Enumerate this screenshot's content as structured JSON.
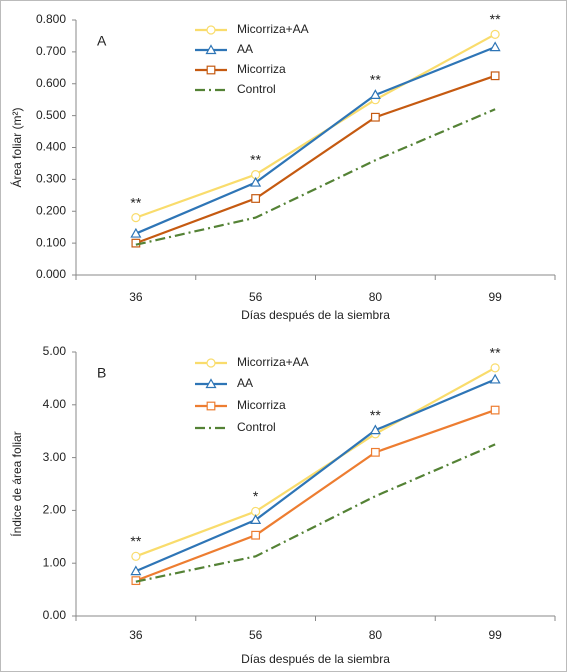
{
  "chart_data": [
    {
      "type": "line",
      "panel_label": "A",
      "ylabel": "Área foliar (m²)",
      "xlabel": "Días después de la siembra",
      "categories": [
        "36",
        "56",
        "80",
        "99"
      ],
      "series": [
        {
          "name": "Micorriza+AA",
          "color": "#f9dc6c",
          "marker": "circle",
          "dash": "solid",
          "values": [
            0.18,
            0.315,
            0.55,
            0.755
          ]
        },
        {
          "name": "AA",
          "color": "#2e75b6",
          "marker": "triangle",
          "dash": "solid",
          "values": [
            0.13,
            0.29,
            0.565,
            0.715
          ]
        },
        {
          "name": "Micorriza",
          "color": "#c55a11",
          "marker": "square",
          "dash": "solid",
          "values": [
            0.1,
            0.24,
            0.495,
            0.625
          ]
        },
        {
          "name": "Control",
          "color": "#548235",
          "marker": "none",
          "dash": "dashdot",
          "values": [
            0.095,
            0.18,
            0.36,
            0.52
          ]
        }
      ],
      "annotations": [
        "**",
        "**",
        "**",
        "**"
      ],
      "ylim": [
        0,
        0.8
      ],
      "yticks": [
        {
          "value": 0,
          "label": "0.000"
        },
        {
          "value": 0.1,
          "label": "0.100"
        },
        {
          "value": 0.2,
          "label": "0.200"
        },
        {
          "value": 0.3,
          "label": "0.300"
        },
        {
          "value": 0.4,
          "label": "0.400"
        },
        {
          "value": 0.5,
          "label": "0.500"
        },
        {
          "value": 0.6,
          "label": "0.600"
        },
        {
          "value": 0.7,
          "label": "0.700"
        },
        {
          "value": 0.8,
          "label": "0.800"
        }
      ],
      "legend": "top-left"
    },
    {
      "type": "line",
      "panel_label": "B",
      "ylabel": "Índice de área foliar",
      "xlabel": "Días después de la siembra",
      "categories": [
        "36",
        "56",
        "80",
        "99"
      ],
      "series": [
        {
          "name": "Micorriza+AA",
          "color": "#f9dc6c",
          "marker": "circle",
          "dash": "solid",
          "values": [
            1.13,
            1.98,
            3.45,
            4.7
          ]
        },
        {
          "name": "AA",
          "color": "#2e75b6",
          "marker": "triangle",
          "dash": "solid",
          "values": [
            0.85,
            1.82,
            3.52,
            4.48
          ]
        },
        {
          "name": "Micorriza",
          "color": "#ed7d31",
          "marker": "square",
          "dash": "solid",
          "values": [
            0.67,
            1.53,
            3.1,
            3.9
          ]
        },
        {
          "name": "Control",
          "color": "#548235",
          "marker": "none",
          "dash": "dashdot",
          "values": [
            0.65,
            1.13,
            2.27,
            3.25
          ]
        }
      ],
      "annotations": [
        "**",
        "*",
        "**",
        "**"
      ],
      "ylim": [
        0,
        5
      ],
      "yticks": [
        {
          "value": 0,
          "label": "0.00"
        },
        {
          "value": 1,
          "label": "1.00"
        },
        {
          "value": 2,
          "label": "2.00"
        },
        {
          "value": 3,
          "label": "3.00"
        },
        {
          "value": 4,
          "label": "4.00"
        },
        {
          "value": 5,
          "label": "5.00"
        }
      ],
      "legend": "top-left"
    }
  ]
}
